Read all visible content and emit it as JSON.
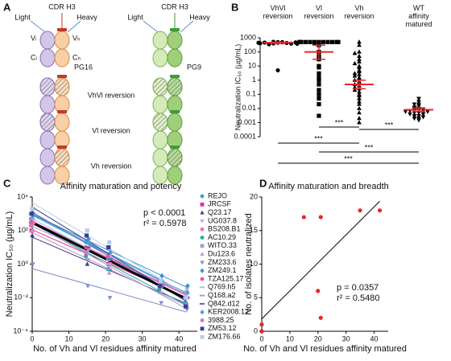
{
  "panel_a": {
    "label": "A",
    "antibodies": [
      {
        "name": "PG16",
        "cdr": "CDR H3",
        "light": "Light",
        "heavy": "Heavy",
        "domains": [
          "Vₗ",
          "Vₕ",
          "Cₗ",
          "Cₕ"
        ]
      },
      {
        "name": "PG9",
        "cdr": "CDR H3",
        "light": "Light",
        "heavy": "Heavy"
      }
    ],
    "rows": [
      "VhVl reversion",
      "Vl reversion",
      "Vh reversion"
    ]
  },
  "chart_data": [
    {
      "type": "dot",
      "label": "B",
      "categories": [
        "VhVl\nreversion",
        "Vl\nreversion",
        "Vh\nreversion",
        "WT\naffinity\nmatured"
      ],
      "ylabel": "Neutralization IC₅₀ (µg/mL)",
      "log_y": true,
      "ylim": [
        0.0001,
        1000
      ],
      "yticks": [
        0.0001,
        0.001,
        0.01,
        0.1,
        1,
        10,
        100,
        1000
      ],
      "color": "#000000",
      "mean_color": "#e8252b",
      "markers": [
        "circle",
        "square",
        "triangle",
        "down"
      ],
      "values": [
        [
          450,
          500,
          400,
          480,
          350,
          520,
          430,
          460,
          390,
          410,
          470,
          440,
          500,
          380,
          5
        ],
        [
          500,
          500,
          500,
          500,
          500,
          500,
          500,
          500,
          500,
          500,
          500,
          500,
          480,
          450,
          300,
          100,
          50,
          30,
          10,
          8,
          3,
          1.5,
          1,
          0.5,
          0.2,
          0.1,
          0.05,
          0.02,
          0.003
        ],
        [
          500,
          300,
          100,
          80,
          50,
          30,
          20,
          15,
          10,
          8,
          5,
          4,
          3,
          2.5,
          2,
          1.5,
          1.2,
          1,
          0.8,
          0.6,
          0.5,
          0.4,
          0.3,
          0.25,
          0.2,
          0.15,
          0.1,
          0.08,
          0.05,
          0.03,
          0.02,
          0.01,
          0.005,
          0.002,
          0.001
        ],
        [
          0.05,
          0.03,
          0.02,
          0.02,
          0.015,
          0.012,
          0.01,
          0.01,
          0.009,
          0.008,
          0.008,
          0.007,
          0.007,
          0.006,
          0.006,
          0.005,
          0.005,
          0.004,
          0.004,
          0.003,
          0.003,
          0.0025,
          0.002,
          0.002,
          0.0015
        ]
      ],
      "means": [
        450,
        100,
        0.5,
        0.008
      ],
      "mean_ci": [
        [
          400,
          500
        ],
        [
          30,
          300
        ],
        [
          0.25,
          1
        ],
        [
          0.006,
          0.011
        ]
      ],
      "annotations": [
        "***",
        "***",
        "***",
        "***",
        "***"
      ]
    },
    {
      "type": "scatter",
      "label": "C",
      "title": "Affinity maturation and potency",
      "xlabel": "No. of Vh and Vl residues affinity matured",
      "ylabel": "Neutralization IC₅₀ (µg/mL)",
      "log_y": true,
      "xlim": [
        0,
        45
      ],
      "xticks": [
        0,
        10,
        20,
        30,
        40
      ],
      "ylim": [
        0.0001,
        10000
      ],
      "yticks": [
        {
          "value": 0.0001,
          "label": "10⁻⁴"
        },
        {
          "value": 0.01,
          "label": "10⁻²"
        },
        {
          "value": 1,
          "label": "10⁰"
        },
        {
          "value": 100,
          "label": "10²"
        },
        {
          "value": 10000,
          "label": "10⁴"
        }
      ],
      "annotations": [
        "p < 0.0001",
        "r² = 0.5978"
      ],
      "fit_color": "#000000",
      "x": [
        0,
        15,
        21,
        35,
        42
      ],
      "series": [
        {
          "name": "REJO",
          "color": "#2ea3dc",
          "marker": "circle",
          "values": [
            1000,
            20,
            2,
            0.1,
            0.02
          ]
        },
        {
          "name": "JRCSF",
          "color": "#e8308a",
          "marker": "square",
          "values": [
            100,
            5,
            1,
            0.05,
            0.01
          ]
        },
        {
          "name": "Q23.17",
          "color": "#3b3d8f",
          "marker": "triangle",
          "values": [
            50,
            1,
            0.5,
            0.02,
            0.005
          ]
        },
        {
          "name": "UG037.8",
          "color": "#b0b3d9",
          "marker": "down",
          "values": [
            2000,
            10,
            3,
            0.1,
            0.03
          ]
        },
        {
          "name": "BS208.B1",
          "color": "#e86fb8",
          "marker": "circle",
          "values": [
            300,
            8,
            1,
            0.05,
            0.01
          ]
        },
        {
          "name": "AC10.29",
          "color": "#24a7a0",
          "marker": "circle",
          "values": [
            500,
            3,
            0.5,
            0.03,
            0.005
          ]
        },
        {
          "name": "WITO.33",
          "color": "#9aa4d1",
          "marker": "square",
          "values": [
            200,
            5,
            2,
            0.08,
            0.02
          ]
        },
        {
          "name": "Du123.6",
          "color": "#c796c9",
          "marker": "triangle",
          "values": [
            100,
            2,
            0.3,
            0.02,
            0.004
          ]
        },
        {
          "name": "ZM233.6",
          "color": "#7f8cc9",
          "marker": "down",
          "values": [
            1,
            0.05,
            0.01,
            0.005,
            0.002
          ]
        },
        {
          "name": "ZM249.1",
          "color": "#3b91d1",
          "marker": "diamond",
          "values": [
            1000,
            30,
            5,
            0.2,
            0.05
          ]
        },
        {
          "name": "TZA125.17",
          "color": "#ec52a3",
          "marker": "circle",
          "values": [
            300,
            10,
            3,
            0.1,
            0.01
          ]
        },
        {
          "name": "Q769.h5",
          "color": "#9fc3e6",
          "marker": "dash",
          "values": [
            1000,
            5,
            1,
            0.05,
            0.01
          ]
        },
        {
          "name": "Q168.a2",
          "color": "#a09cd1",
          "marker": "dash",
          "values": [
            500,
            2,
            0.5,
            0.02,
            0.003
          ]
        },
        {
          "name": "Q842.d12",
          "color": "#5a5fae",
          "marker": "dash",
          "values": [
            2000,
            10,
            2,
            0.05,
            0.01
          ]
        },
        {
          "name": "KER2008.12",
          "color": "#4e9ed6",
          "marker": "diamond",
          "values": [
            800,
            20,
            5,
            0.1,
            0.02
          ]
        },
        {
          "name": "3988.25",
          "color": "#e070b8",
          "marker": "circle",
          "values": [
            200,
            5,
            10,
            0.05,
            0.01
          ]
        },
        {
          "name": "ZM53.12",
          "color": "#3a3d9b",
          "marker": "square",
          "values": [
            1000,
            50,
            10,
            0.05,
            0.003
          ]
        },
        {
          "name": "ZM176.66",
          "color": "#b5cde8",
          "marker": "square",
          "values": [
            2000,
            100,
            20,
            0.1,
            0.01
          ]
        }
      ]
    },
    {
      "type": "scatter",
      "label": "D",
      "title": "Affinity maturation and breadth",
      "xlabel": "No. of Vh and Vl residues affinity matured",
      "ylabel": "No. of isolates neutralized",
      "xlim": [
        0,
        45
      ],
      "xticks": [
        0,
        10,
        20,
        30,
        40
      ],
      "ylim": [
        0,
        20
      ],
      "yticks": [
        0,
        5,
        10,
        15,
        20
      ],
      "annotations": [
        "p = 0.0357",
        "r² = 0.5480"
      ],
      "fit_color": "#000000",
      "x": [
        0,
        0,
        15,
        20,
        21,
        21,
        35,
        42
      ],
      "series": [
        {
          "color": "#e8252b",
          "marker": "circle",
          "values": [
            0,
            1,
            17,
            6,
            17,
            2,
            18,
            18
          ]
        }
      ]
    }
  ]
}
